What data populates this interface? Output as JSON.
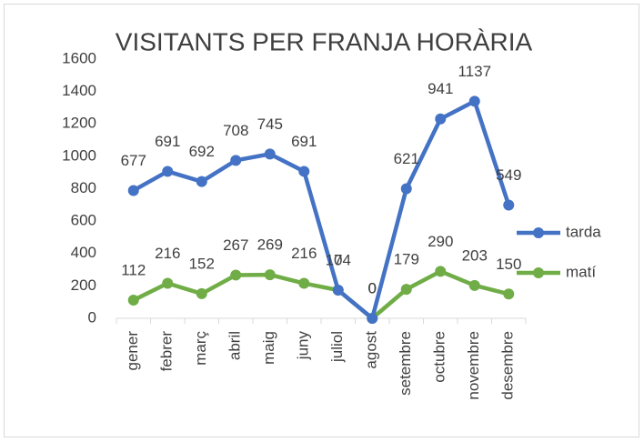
{
  "chart_data": {
    "type": "line",
    "stacked": true,
    "title": "VISITANTS PER FRANJA HORÀRIA",
    "categories": [
      "gener",
      "febrer",
      "març",
      "abril",
      "maig",
      "juny",
      "juliol",
      "agost",
      "setembre",
      "octubre",
      "novembre",
      "desembre"
    ],
    "series": [
      {
        "name": "tarda",
        "color": "#4472c4",
        "values": [
          677,
          691,
          692,
          708,
          745,
          691,
          0,
          0,
          621,
          941,
          1137,
          549
        ]
      },
      {
        "name": "matí",
        "color": "#70ad47",
        "values": [
          112,
          216,
          152,
          267,
          269,
          216,
          174,
          0,
          179,
          290,
          203,
          150
        ]
      }
    ],
    "ylim": [
      0,
      1600
    ],
    "yticks": [
      0,
      200,
      400,
      600,
      800,
      1000,
      1200,
      1400,
      1600
    ],
    "grid": false,
    "legend": "right"
  }
}
